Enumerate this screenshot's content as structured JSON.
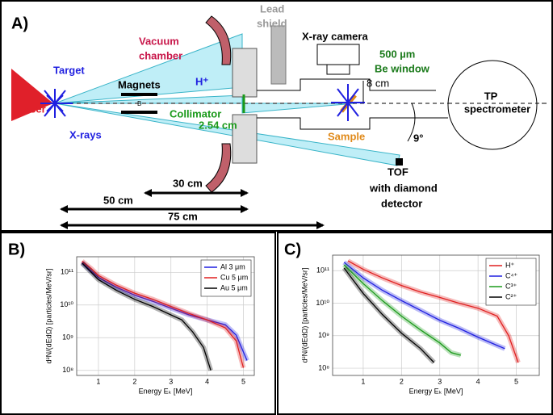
{
  "panels": {
    "a": "A)",
    "b": "B)",
    "c": "C)"
  },
  "diagram": {
    "lead_shield": [
      "Lead",
      "shield"
    ],
    "vacuum_chamber": [
      "Vacuum",
      "chamber"
    ],
    "xray_camera": "X-ray camera",
    "be_window": [
      "500 µm",
      "Be window"
    ],
    "target": "Target",
    "proton": "H⁺",
    "magnets": "Magnets",
    "field": "B",
    "laser": "Laser",
    "xrays": "X-rays",
    "collimator": "Collimator",
    "collimator_size": "2.54 cm",
    "offset": "8 cm",
    "spectrometer": [
      "TP",
      "spectrometer"
    ],
    "sample": "Sample",
    "angle": "9°",
    "tof": [
      "TOF",
      "with diamond",
      "detector"
    ],
    "dist_30": "30 cm",
    "dist_50": "50 cm",
    "dist_75": "75 cm"
  },
  "chart_data": [
    {
      "type": "line",
      "x_label": "Energy Eₖ [MeV]",
      "y_label": "d²N/(dEdΩ) [particles/MeV/sr]",
      "xlim": [
        0.4,
        5.3
      ],
      "xticks": [
        1,
        2,
        3,
        4,
        5
      ],
      "ylim": [
        70000000,
        300000000000
      ],
      "log_y": true,
      "grid": true,
      "legend": "upper-right",
      "yticks": [
        {
          "value": 100000000,
          "label": "10⁸"
        },
        {
          "value": 1000000000,
          "label": "10⁹"
        },
        {
          "value": 10000000000,
          "label": "10¹⁰"
        },
        {
          "value": 100000000000,
          "label": "10¹¹"
        }
      ],
      "series": [
        {
          "name": "Al 3 μm",
          "color": "#1f1fe0",
          "x": [
            0.55,
            0.8,
            1,
            1.5,
            2,
            2.5,
            3,
            3.5,
            4,
            4.5,
            4.8,
            5.1
          ],
          "values": [
            200000000000,
            110000000000,
            70000000000,
            35000000000,
            20000000000,
            13000000000,
            8000000000,
            5000000000,
            3500000000,
            2500000000,
            1200000000,
            200000000
          ]
        },
        {
          "name": "Cu 5 μm",
          "color": "#e01f1f",
          "x": [
            0.55,
            0.8,
            1,
            1.5,
            2,
            2.5,
            3,
            3.5,
            4,
            4.5,
            4.8,
            5.0
          ],
          "values": [
            220000000000,
            130000000000,
            80000000000,
            40000000000,
            23000000000,
            15000000000,
            9000000000,
            5500000000,
            3500000000,
            2000000000,
            800000000,
            120000000
          ]
        },
        {
          "name": "Au 5 μm",
          "color": "#000000",
          "x": [
            0.55,
            0.8,
            1,
            1.5,
            2,
            2.5,
            3,
            3.3,
            3.6,
            3.9,
            4.1
          ],
          "values": [
            190000000000,
            100000000000,
            60000000000,
            28000000000,
            15000000000,
            9000000000,
            5000000000,
            3500000000,
            1500000000,
            500000000,
            100000000
          ]
        }
      ]
    },
    {
      "type": "line",
      "x_label": "Energy Eₖ [MeV]",
      "y_label": "d²N/(dEdΩ) [particles/MeV/sr]",
      "xlim": [
        0.2,
        5.6
      ],
      "xticks": [
        1,
        2,
        3,
        4,
        5
      ],
      "ylim": [
        60000000,
        300000000000
      ],
      "log_y": true,
      "grid": true,
      "legend": "upper-right",
      "yticks": [
        {
          "value": 100000000,
          "label": "10⁸"
        },
        {
          "value": 1000000000,
          "label": "10⁹"
        },
        {
          "value": 10000000000,
          "label": "10¹⁰"
        },
        {
          "value": 100000000000,
          "label": "10¹¹"
        }
      ],
      "series": [
        {
          "name": "H⁺",
          "color": "#e01f1f",
          "x": [
            0.6,
            1,
            1.5,
            2,
            2.5,
            3,
            3.5,
            4,
            4.5,
            4.8,
            5.05
          ],
          "values": [
            200000000000,
            110000000000,
            60000000000,
            35000000000,
            22000000000,
            15000000000,
            10000000000,
            7000000000,
            4000000000,
            1000000000,
            150000000
          ]
        },
        {
          "name": "C⁴⁺",
          "color": "#1f1fe0",
          "x": [
            0.5,
            1,
            1.5,
            2,
            2.5,
            3,
            3.5,
            4,
            4.5,
            4.7
          ],
          "values": [
            180000000000,
            60000000000,
            25000000000,
            12000000000,
            6000000000,
            3000000000,
            1700000000,
            900000000,
            500000000,
            400000000
          ]
        },
        {
          "name": "C³⁺",
          "color": "#1a9a1a",
          "x": [
            0.5,
            1,
            1.5,
            2,
            2.5,
            3,
            3.3,
            3.55
          ],
          "values": [
            150000000000,
            40000000000,
            12000000000,
            4000000000,
            1500000000,
            600000000,
            300000000,
            250000000
          ]
        },
        {
          "name": "C²⁺",
          "color": "#000000",
          "x": [
            0.5,
            1,
            1.5,
            2,
            2.5,
            2.85
          ],
          "values": [
            120000000000,
            20000000000,
            4500000000,
            1200000000,
            400000000,
            150000000
          ]
        }
      ]
    }
  ]
}
